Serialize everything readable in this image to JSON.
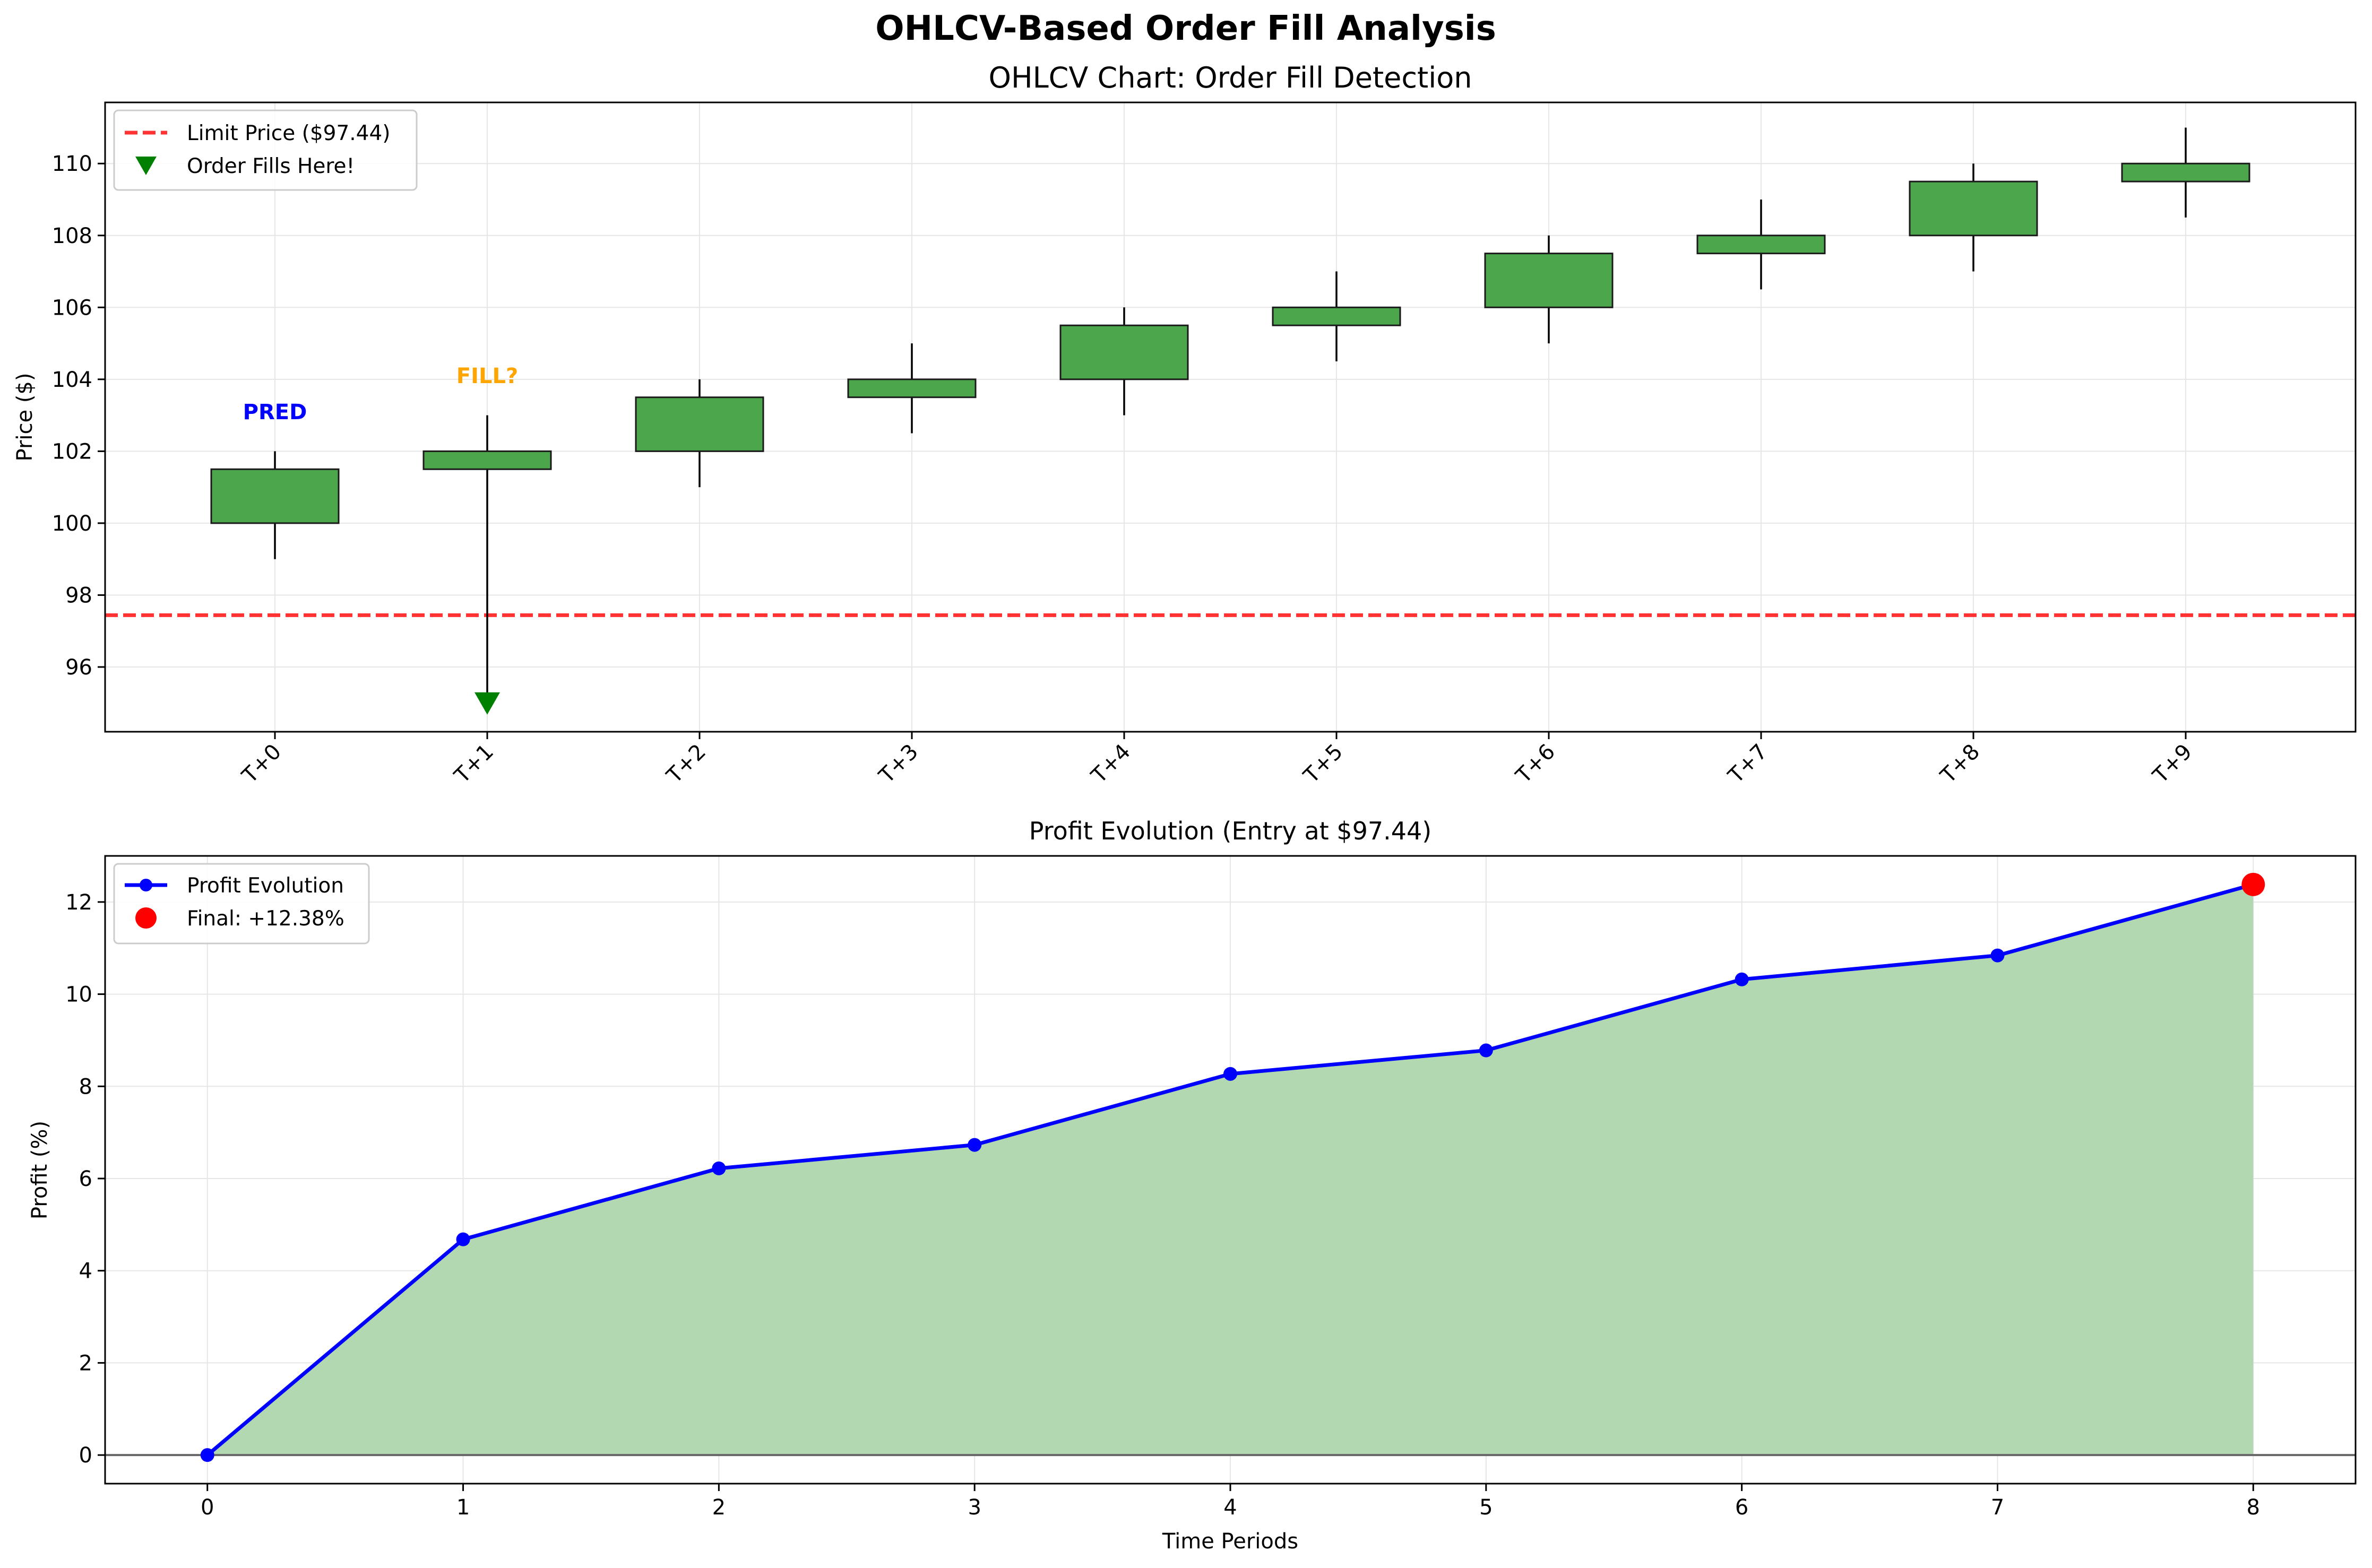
{
  "figure_title": "OHLCV-Based Order Fill Analysis",
  "chart_data": [
    {
      "type": "candlestick",
      "title": "OHLCV Chart: Order Fill Detection",
      "xlabel": "",
      "ylabel": "Price ($)",
      "categories": [
        "T+0",
        "T+1",
        "T+2",
        "T+3",
        "T+4",
        "T+5",
        "T+6",
        "T+7",
        "T+8",
        "T+9"
      ],
      "ohlc": [
        {
          "open": 100.0,
          "high": 102.0,
          "low": 99.0,
          "close": 101.5
        },
        {
          "open": 101.5,
          "high": 103.0,
          "low": 95.0,
          "close": 102.0
        },
        {
          "open": 102.0,
          "high": 104.0,
          "low": 101.0,
          "close": 103.5
        },
        {
          "open": 103.5,
          "high": 105.0,
          "low": 102.5,
          "close": 104.0
        },
        {
          "open": 104.0,
          "high": 106.0,
          "low": 103.0,
          "close": 105.5
        },
        {
          "open": 105.5,
          "high": 107.0,
          "low": 104.5,
          "close": 106.0
        },
        {
          "open": 106.0,
          "high": 108.0,
          "low": 105.0,
          "close": 107.5
        },
        {
          "open": 107.5,
          "high": 109.0,
          "low": 106.5,
          "close": 108.0
        },
        {
          "open": 108.0,
          "high": 110.0,
          "low": 107.0,
          "close": 109.5
        },
        {
          "open": 109.5,
          "high": 111.0,
          "low": 108.5,
          "close": 110.0
        }
      ],
      "limit_price": 97.44,
      "fill_marker": {
        "index": 1,
        "price": 95.0
      },
      "annotations": [
        {
          "index": 0,
          "text": "PRED",
          "price": 103.1,
          "color": "#0000ff"
        },
        {
          "index": 1,
          "text": "FILL?",
          "price": 104.1,
          "color": "#ffa500"
        }
      ],
      "legend": [
        {
          "label": "Limit Price ($97.44)",
          "kind": "dashed-line",
          "color": "#ff3333"
        },
        {
          "label": "Order Fills Here!",
          "kind": "triangle-marker",
          "color": "#008000"
        }
      ],
      "legend_position": "upper-left",
      "yticks": [
        96,
        98,
        100,
        102,
        104,
        106,
        108,
        110
      ],
      "ylim": [
        94.2,
        111.7
      ],
      "candle_color": "#4ca64c",
      "grid": true
    },
    {
      "type": "line",
      "title": "Profit Evolution (Entry at $97.44)",
      "xlabel": "Time Periods",
      "ylabel": "Profit (%)",
      "x": [
        0,
        1,
        2,
        3,
        4,
        5,
        6,
        7,
        8
      ],
      "series": [
        {
          "name": "Profit Evolution",
          "values": [
            0,
            4.68,
            6.22,
            6.73,
            8.27,
            8.78,
            10.32,
            10.84,
            12.38
          ],
          "color": "#0000ff"
        }
      ],
      "final_point": {
        "label": "Final: +12.38%",
        "x": 8,
        "y": 12.38,
        "color": "#ff0000"
      },
      "fill_color": "#b2d8b2",
      "legend_position": "upper-left",
      "xticks": [
        0,
        1,
        2,
        3,
        4,
        5,
        6,
        7,
        8
      ],
      "yticks": [
        0,
        2,
        4,
        6,
        8,
        10,
        12
      ],
      "xlim": [
        -0.4,
        8.4
      ],
      "ylim": [
        -0.62,
        13.0
      ],
      "grid": true
    }
  ]
}
